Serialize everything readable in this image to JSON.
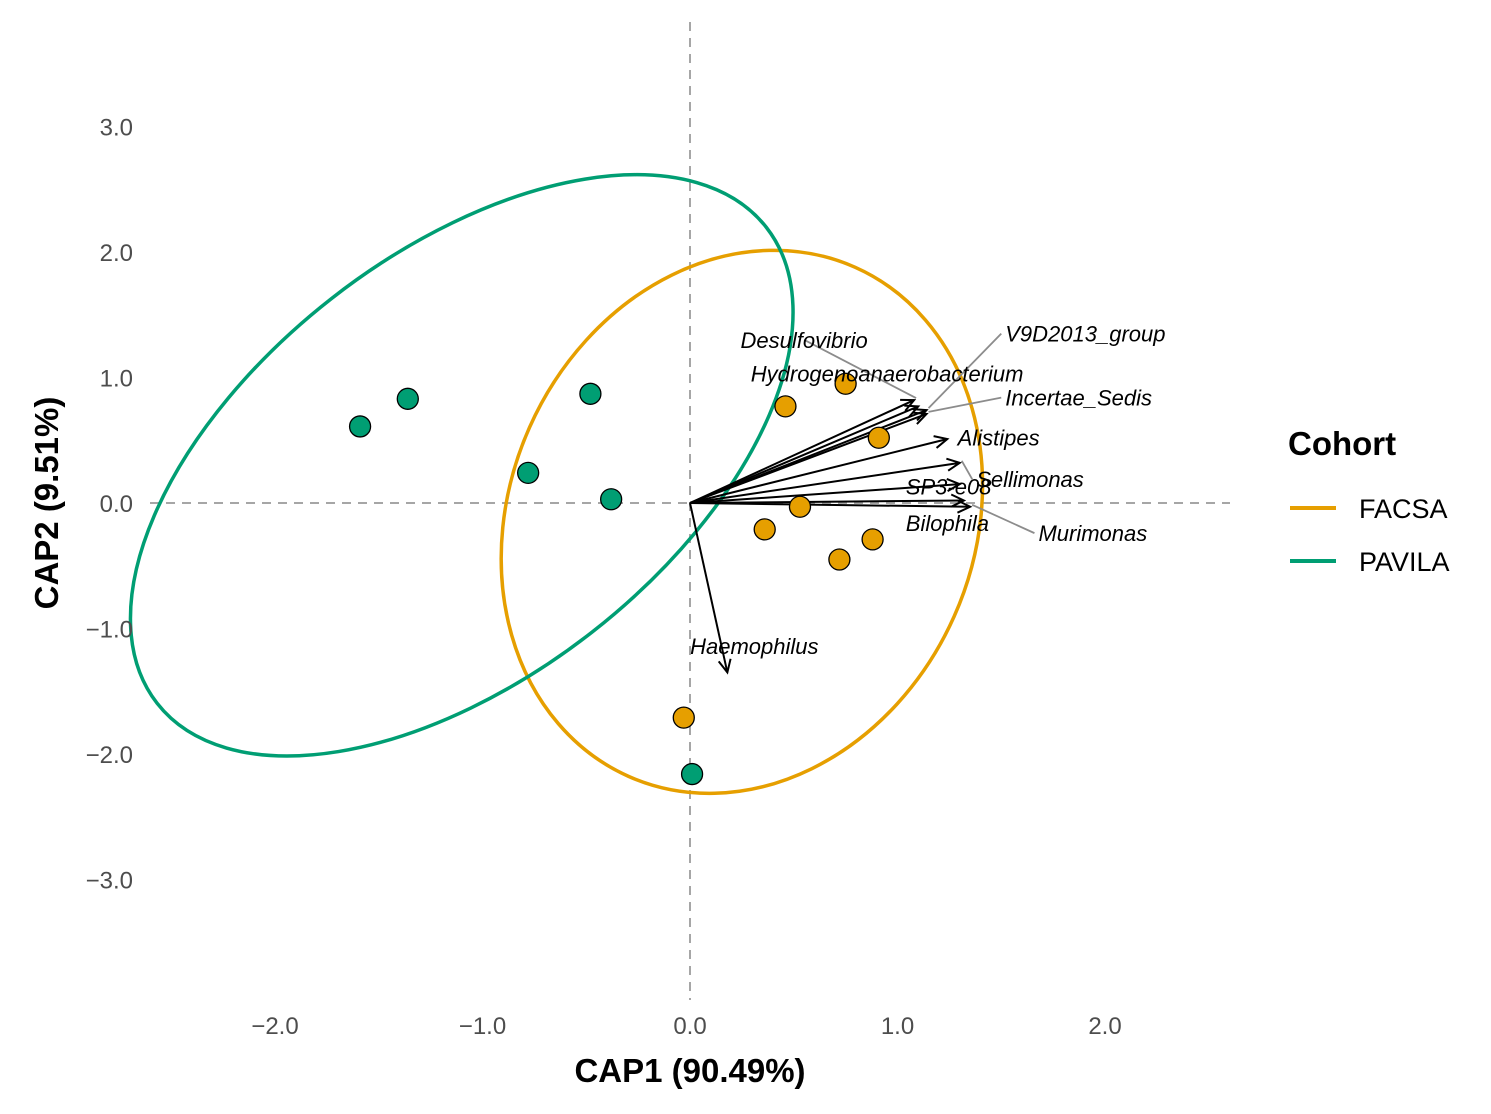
{
  "chart_data": {
    "type": "scatter",
    "xlabel": "CAP1 (90.49%)",
    "ylabel": "CAP2 (9.51%)",
    "xlim": [
      -2.6,
      2.6
    ],
    "ylim": [
      -3.9,
      3.4
    ],
    "xticks": [
      -2.0,
      -1.0,
      0.0,
      1.0,
      2.0
    ],
    "yticks": [
      3.0,
      2.0,
      1.0,
      0.0,
      -1.0,
      -2.0,
      -3.0
    ],
    "xtick_labels": [
      "−2.0",
      "−1.0",
      "0.0",
      "1.0",
      "2.0"
    ],
    "ytick_labels": [
      "3.0",
      "2.0",
      "1.0",
      "0.0",
      "−1.0",
      "−2.0",
      "−3.0"
    ],
    "reference_lines": {
      "x": 0,
      "y": 0,
      "style": "dashed"
    },
    "legend": {
      "title": "Cohort",
      "position": "right"
    },
    "series": [
      {
        "name": "FACSA",
        "color": "#E69F00",
        "points": [
          {
            "x": 0.75,
            "y": 0.95
          },
          {
            "x": 0.46,
            "y": 0.77
          },
          {
            "x": 0.91,
            "y": 0.52
          },
          {
            "x": 0.53,
            "y": -0.03
          },
          {
            "x": 0.36,
            "y": -0.21
          },
          {
            "x": 0.72,
            "y": -0.45
          },
          {
            "x": 0.88,
            "y": -0.29
          },
          {
            "x": -0.03,
            "y": -1.71
          }
        ],
        "ellipse": {
          "cx": 0.25,
          "cy": -0.15,
          "rx": 1.12,
          "ry": 2.22,
          "angle_deg": 24
        }
      },
      {
        "name": "PAVILA",
        "color": "#009E73",
        "points": [
          {
            "x": -1.59,
            "y": 0.61
          },
          {
            "x": -1.36,
            "y": 0.83
          },
          {
            "x": -0.78,
            "y": 0.24
          },
          {
            "x": -0.48,
            "y": 0.87
          },
          {
            "x": -0.38,
            "y": 0.03
          },
          {
            "x": 0.01,
            "y": -2.16
          }
        ],
        "ellipse": {
          "cx": -1.1,
          "cy": 0.3,
          "rx": 1.02,
          "ry": 3.08,
          "angle_deg": 52
        }
      }
    ],
    "vectors": [
      {
        "name": "Desulfovibrio",
        "x": 1.08,
        "y": 0.82,
        "label_x": 0.55,
        "label_y": 1.3,
        "leader": true
      },
      {
        "name": "V9D2013_group",
        "x": 1.14,
        "y": 0.74,
        "label_x": 1.5,
        "label_y": 1.35,
        "leader": true
      },
      {
        "name": "Hydrogenoanaerobacterium",
        "x": 1.1,
        "y": 0.77,
        "label_x": 0.95,
        "label_y": 1.03,
        "leader": false
      },
      {
        "name": "Incertae_Sedis",
        "x": 1.14,
        "y": 0.71,
        "label_x": 1.5,
        "label_y": 0.84,
        "leader": true
      },
      {
        "name": "Alistipes",
        "x": 1.24,
        "y": 0.51,
        "label_x": 1.29,
        "label_y": 0.52,
        "leader": false
      },
      {
        "name": "Sellimonas",
        "x": 1.3,
        "y": 0.32,
        "label_x": 1.36,
        "label_y": 0.19,
        "leader": true
      },
      {
        "name": "SP3-e08",
        "x": 1.3,
        "y": 0.15,
        "label_x": 1.04,
        "label_y": 0.13,
        "leader": false
      },
      {
        "name": "Bilophila",
        "x": 1.32,
        "y": 0.02,
        "label_x": 1.04,
        "label_y": -0.16,
        "leader": false
      },
      {
        "name": "Murimonas",
        "x": 1.35,
        "y": -0.03,
        "label_x": 1.66,
        "label_y": -0.24,
        "leader": true
      },
      {
        "name": "Haemophilus",
        "x": 0.18,
        "y": -1.35,
        "label_x": 0.31,
        "label_y": -1.14,
        "leader": false
      }
    ]
  }
}
